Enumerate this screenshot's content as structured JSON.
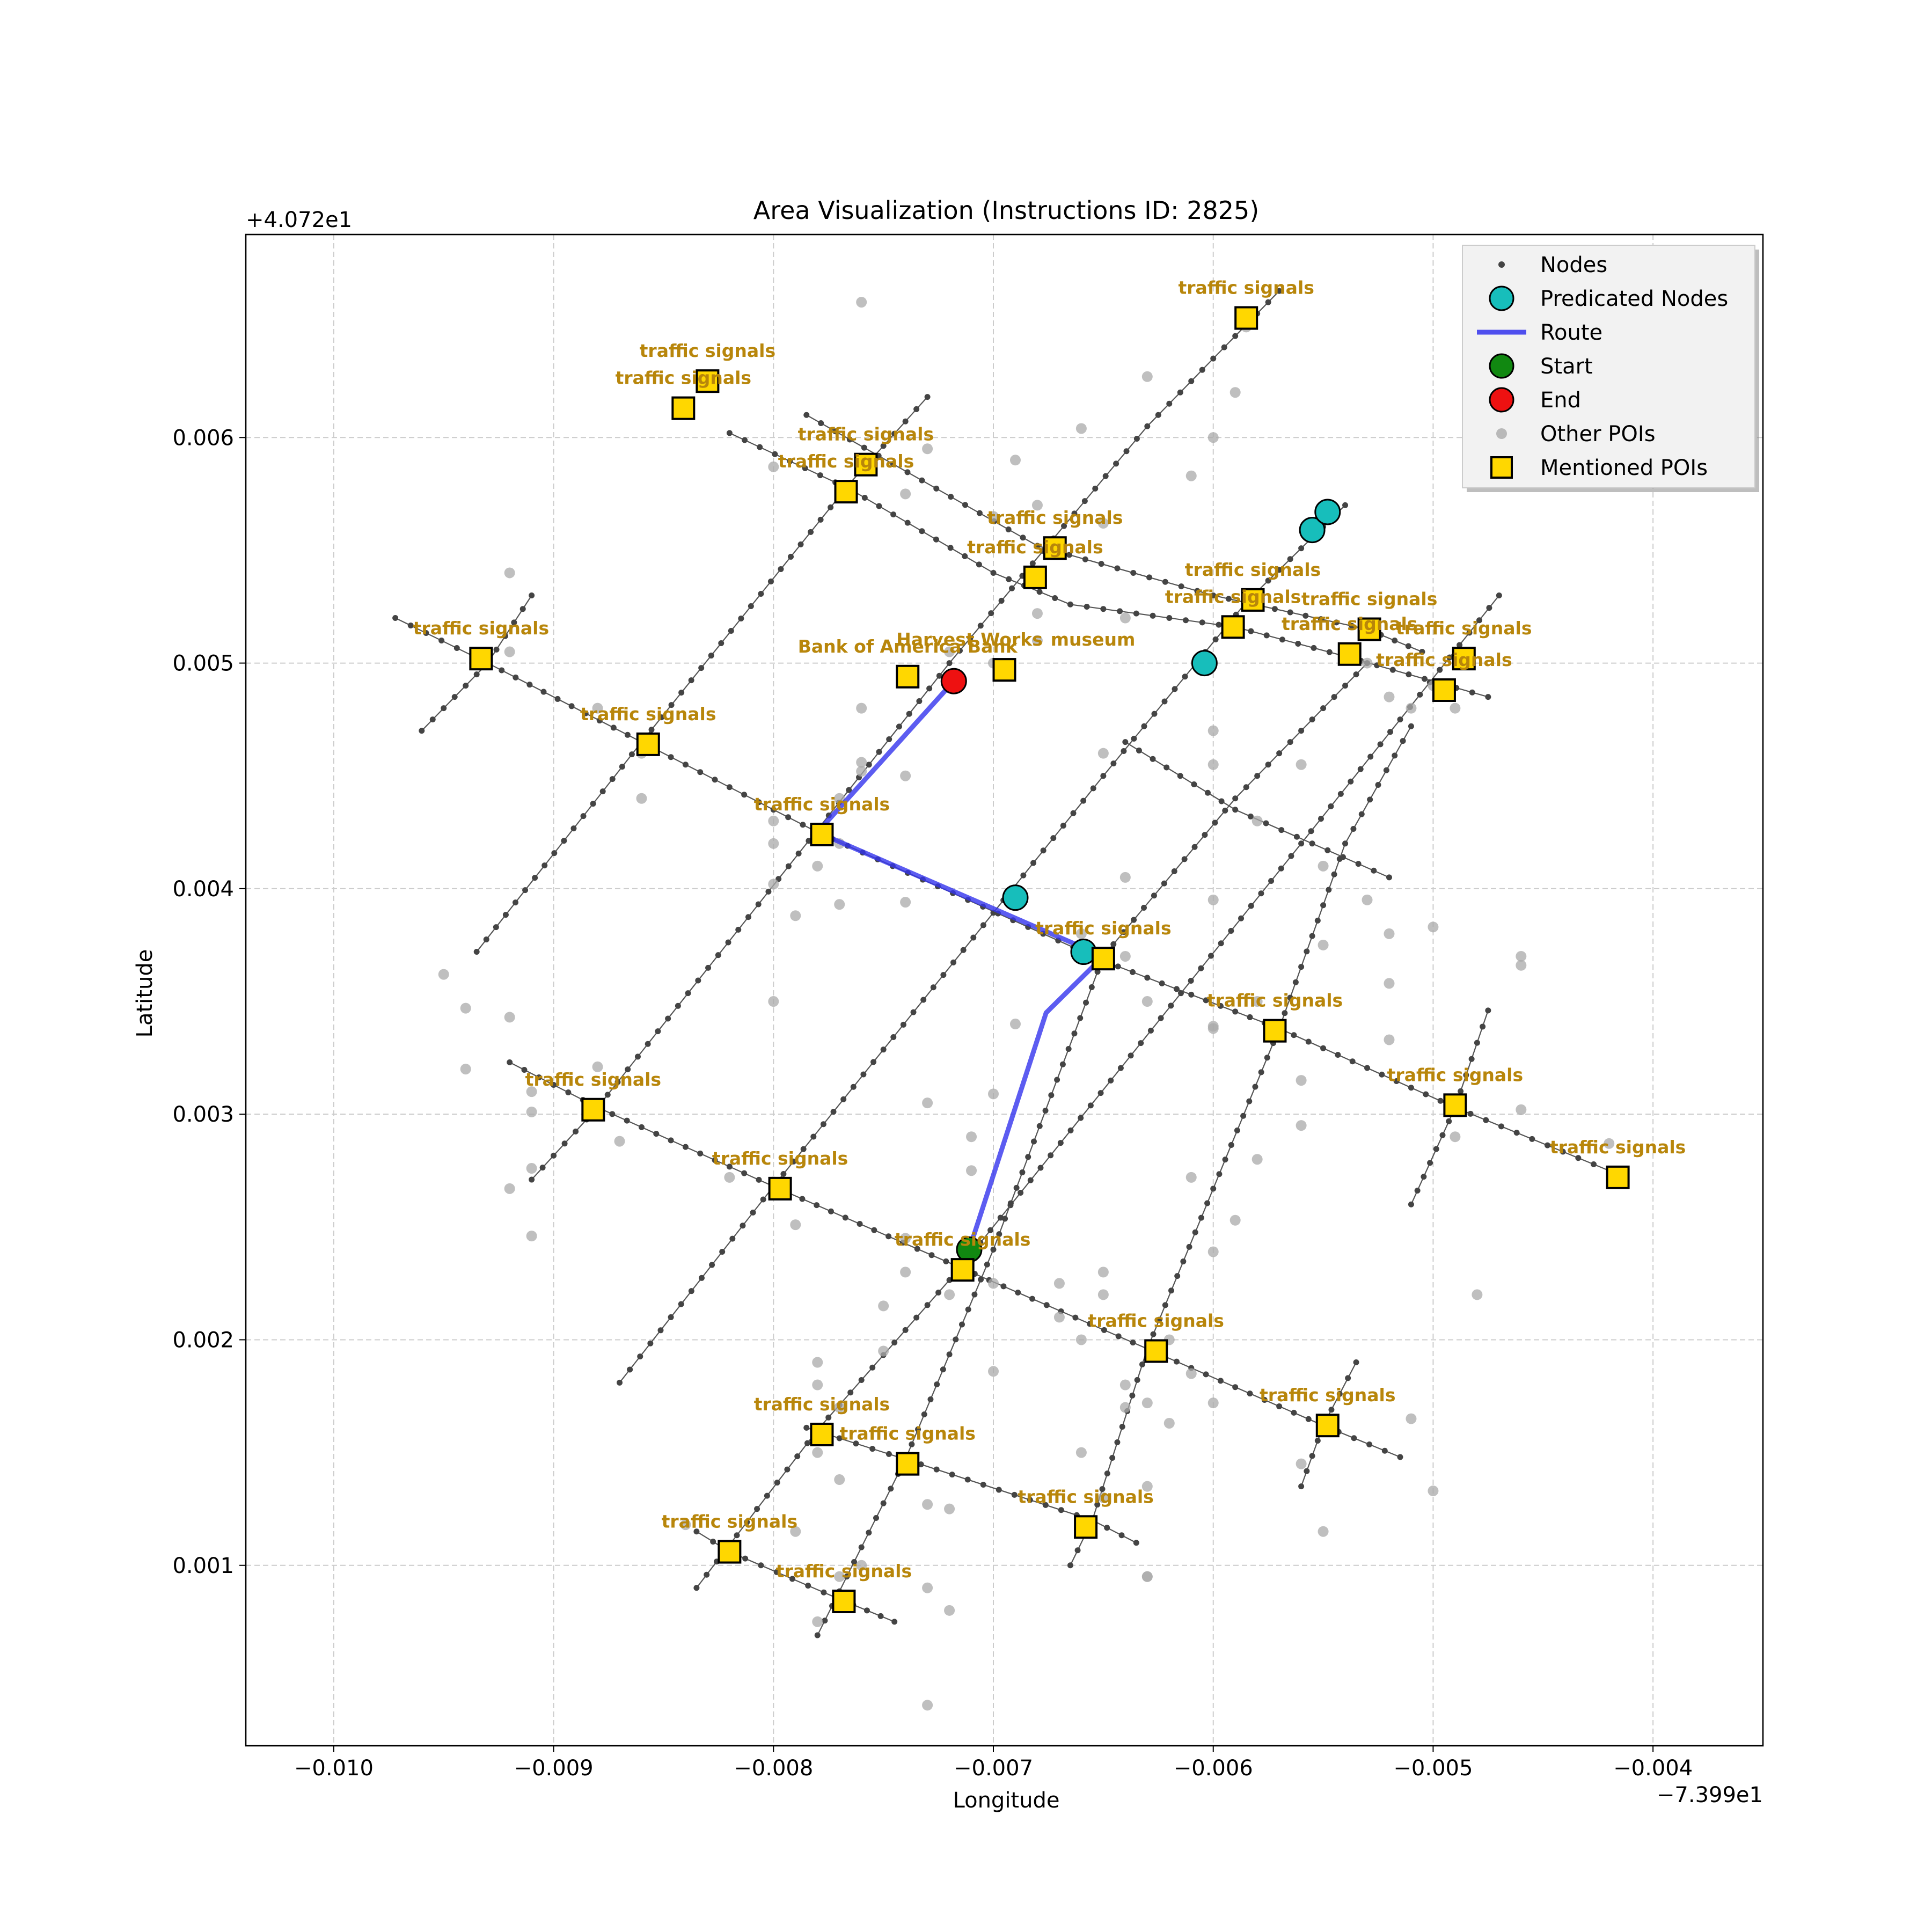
{
  "chart_data": {
    "type": "scatter",
    "title": "Area Visualization (Instructions ID: 2825)",
    "xlabel": "Longitude",
    "ylabel": "Latitude",
    "x_offset_label": "−7.399e1",
    "y_offset_label": "+4.072e1",
    "xlim": [
      -0.0104,
      -0.0035
    ],
    "ylim": [
      0.0002,
      0.0069
    ],
    "xticks": [
      -0.01,
      -0.009,
      -0.008,
      -0.007,
      -0.006,
      -0.005,
      -0.004
    ],
    "xtick_labels": [
      "−0.010",
      "−0.009",
      "−0.008",
      "−0.007",
      "−0.006",
      "−0.005",
      "−0.004"
    ],
    "yticks": [
      0.001,
      0.002,
      0.003,
      0.004,
      0.005,
      0.006
    ],
    "ytick_labels": [
      "0.001",
      "0.002",
      "0.003",
      "0.004",
      "0.005",
      "0.006"
    ],
    "grid": true,
    "legend_position": "top-right",
    "legend": [
      "Nodes",
      "Predicated Nodes",
      "Route",
      "Start",
      "End",
      "Other POIs",
      "Mentioned POIs"
    ],
    "colors": {
      "node": "#444444",
      "predicated": "#17bebb",
      "route": "#3333ee",
      "start": "#118811",
      "end": "#ee1111",
      "other_poi": "#aaaaaa",
      "mentioned_poi": "#ffd700",
      "label": "#b8860b",
      "grid": "#cccccc"
    },
    "streets": [
      [
        [
          -0.00972,
          0.0052
        ],
        [
          -0.0093,
          0.005
        ],
        [
          -0.0086,
          0.00465
        ],
        [
          -0.0078,
          0.00425
        ],
        [
          -0.0065,
          0.00368
        ],
        [
          -0.0057,
          0.00338
        ],
        [
          -0.0049,
          0.00303
        ],
        [
          -0.0042,
          0.00275
        ]
      ],
      [
        [
          -0.0092,
          0.00323
        ],
        [
          -0.0088,
          0.00303
        ],
        [
          -0.008,
          0.00268
        ],
        [
          -0.00715,
          0.00232
        ],
        [
          -0.0063,
          0.00196
        ],
        [
          -0.0055,
          0.00162
        ],
        [
          -0.00515,
          0.00148
        ]
      ],
      [
        [
          -0.00785,
          0.0061
        ],
        [
          -0.0068,
          0.00552
        ],
        [
          -0.006,
          0.0053
        ],
        [
          -0.0053,
          0.00515
        ],
        [
          -0.00505,
          0.00505
        ]
      ],
      [
        [
          -0.0082,
          0.00602
        ],
        [
          -0.00765,
          0.00577
        ],
        [
          -0.007,
          0.0054
        ],
        [
          -0.00665,
          0.00526
        ],
        [
          -0.0059,
          0.00516
        ],
        [
          -0.0054,
          0.00503
        ],
        [
          -0.00475,
          0.00485
        ]
      ],
      [
        [
          -0.00785,
          0.00161
        ],
        [
          -0.0074,
          0.00147
        ],
        [
          -0.00655,
          0.0012
        ],
        [
          -0.00635,
          0.0011
        ]
      ],
      [
        [
          -0.00835,
          0.00115
        ],
        [
          -0.0082,
          0.00106
        ],
        [
          -0.0077,
          0.00085
        ],
        [
          -0.00745,
          0.00075
        ]
      ],
      [
        [
          -0.0064,
          0.00465
        ],
        [
          -0.0059,
          0.00435
        ],
        [
          -0.0052,
          0.00405
        ]
      ],
      [
        [
          -0.0096,
          0.0047
        ],
        [
          -0.0093,
          0.005
        ],
        [
          -0.0091,
          0.0053
        ]
      ],
      [
        [
          -0.00935,
          0.00372
        ],
        [
          -0.0086,
          0.00465
        ],
        [
          -0.00765,
          0.0058
        ],
        [
          -0.0073,
          0.00618
        ]
      ],
      [
        [
          -0.0091,
          0.00271
        ],
        [
          -0.0088,
          0.00303
        ],
        [
          -0.0072,
          0.005
        ],
        [
          -0.0063,
          0.00605
        ],
        [
          -0.0057,
          0.00665
        ]
      ],
      [
        [
          -0.00835,
          0.0009
        ],
        [
          -0.0078,
          0.0016
        ],
        [
          -0.00715,
          0.00232
        ],
        [
          -0.0056,
          0.0042
        ],
        [
          -0.0047,
          0.0053
        ]
      ],
      [
        [
          -0.0087,
          0.00181
        ],
        [
          -0.008,
          0.00268
        ],
        [
          -0.0065,
          0.0045
        ],
        [
          -0.00585,
          0.00527
        ],
        [
          -0.0054,
          0.0057
        ]
      ],
      [
        [
          -0.0078,
          0.00069
        ],
        [
          -0.0074,
          0.00147
        ],
        [
          -0.007,
          0.0024
        ],
        [
          -0.0065,
          0.0037
        ],
        [
          -0.0059,
          0.0044
        ],
        [
          -0.0053,
          0.005
        ]
      ],
      [
        [
          -0.00665,
          0.001
        ],
        [
          -0.00655,
          0.0012
        ],
        [
          -0.0063,
          0.00196
        ],
        [
          -0.0057,
          0.00338
        ],
        [
          -0.0054,
          0.0042
        ],
        [
          -0.0051,
          0.00472
        ]
      ],
      [
        [
          -0.0051,
          0.0026
        ],
        [
          -0.0049,
          0.00303
        ],
        [
          -0.00475,
          0.00346
        ]
      ],
      [
        [
          -0.0056,
          0.00135
        ],
        [
          -0.0055,
          0.00162
        ],
        [
          -0.00535,
          0.0019
        ]
      ]
    ],
    "route": [
      [
        -0.00711,
        0.0024
      ],
      [
        -0.00676,
        0.00345
      ],
      [
        -0.0065,
        0.0037
      ],
      [
        -0.0078,
        0.00425
      ],
      [
        -0.00718,
        0.00492
      ]
    ],
    "start": [
      -0.00711,
      0.0024
    ],
    "end": [
      -0.00718,
      0.00492
    ],
    "predicated_nodes": [
      [
        -0.0069,
        0.00396
      ],
      [
        -0.00659,
        0.00372
      ],
      [
        -0.00604,
        0.005
      ],
      [
        -0.00555,
        0.00559
      ],
      [
        -0.00548,
        0.00567
      ]
    ],
    "other_pois": [
      [
        -0.0076,
        0.0066
      ],
      [
        -0.00585,
        0.00649
      ],
      [
        -0.0059,
        0.0062
      ],
      [
        -0.0063,
        0.00627
      ],
      [
        -0.0066,
        0.00604
      ],
      [
        -0.006,
        0.006
      ],
      [
        -0.0069,
        0.0059
      ],
      [
        -0.008,
        0.00587
      ],
      [
        -0.0073,
        0.00595
      ],
      [
        -0.0074,
        0.00575
      ],
      [
        -0.0061,
        0.00583
      ],
      [
        -0.0065,
        0.00562
      ],
      [
        -0.0068,
        0.0057
      ],
      [
        -0.007,
        0.00565
      ],
      [
        -0.0092,
        0.0054
      ],
      [
        -0.0068,
        0.00522
      ],
      [
        -0.0064,
        0.0052
      ],
      [
        -0.0068,
        0.0051
      ],
      [
        -0.007,
        0.005
      ],
      [
        -0.0072,
        0.00505
      ],
      [
        -0.0076,
        0.0048
      ],
      [
        -0.0074,
        0.0045
      ],
      [
        -0.0076,
        0.00456
      ],
      [
        -0.0077,
        0.0044
      ],
      [
        -0.0076,
        0.00452
      ],
      [
        -0.0086,
        0.0046
      ],
      [
        -0.0088,
        0.0048
      ],
      [
        -0.0086,
        0.0044
      ],
      [
        -0.008,
        0.0042
      ],
      [
        -0.0078,
        0.0041
      ],
      [
        -0.008,
        0.0043
      ],
      [
        -0.0079,
        0.00388
      ],
      [
        -0.0077,
        0.00393
      ],
      [
        -0.008,
        0.00402
      ],
      [
        -0.0077,
        0.0042
      ],
      [
        -0.0074,
        0.00394
      ],
      [
        -0.0065,
        0.0046
      ],
      [
        -0.006,
        0.0047
      ],
      [
        -0.006,
        0.00455
      ],
      [
        -0.0056,
        0.00455
      ],
      [
        -0.0058,
        0.0043
      ],
      [
        -0.0064,
        0.00405
      ],
      [
        -0.006,
        0.00395
      ],
      [
        -0.0066,
        0.0038
      ],
      [
        -0.0064,
        0.0037
      ],
      [
        -0.0063,
        0.0035
      ],
      [
        -0.006,
        0.00338
      ],
      [
        -0.0058,
        0.0035
      ],
      [
        -0.0055,
        0.0041
      ],
      [
        -0.0055,
        0.00375
      ],
      [
        -0.0053,
        0.00395
      ],
      [
        -0.0052,
        0.0038
      ],
      [
        -0.0049,
        0.0048
      ],
      [
        -0.005,
        0.0049
      ],
      [
        -0.0052,
        0.00485
      ],
      [
        -0.0053,
        0.005
      ],
      [
        -0.0051,
        0.0048
      ],
      [
        -0.0092,
        0.00505
      ],
      [
        -0.0095,
        0.00362
      ],
      [
        -0.0094,
        0.00347
      ],
      [
        -0.0092,
        0.00343
      ],
      [
        -0.0094,
        0.0032
      ],
      [
        -0.0091,
        0.0031
      ],
      [
        -0.0091,
        0.00301
      ],
      [
        -0.0088,
        0.00321
      ],
      [
        -0.0087,
        0.00288
      ],
      [
        -0.0092,
        0.00267
      ],
      [
        -0.0091,
        0.00276
      ],
      [
        -0.0091,
        0.00246
      ],
      [
        -0.008,
        0.0035
      ],
      [
        -0.0082,
        0.00272
      ],
      [
        -0.0079,
        0.00251
      ],
      [
        -0.008,
        0.0027
      ],
      [
        -0.0074,
        0.00245
      ],
      [
        -0.0074,
        0.0023
      ],
      [
        -0.0075,
        0.00215
      ],
      [
        -0.0072,
        0.0022
      ],
      [
        -0.007,
        0.00309
      ],
      [
        -0.0071,
        0.0029
      ],
      [
        -0.0071,
        0.00275
      ],
      [
        -0.0073,
        0.00305
      ],
      [
        -0.0069,
        0.0034
      ],
      [
        -0.007,
        0.00225
      ],
      [
        -0.0067,
        0.0021
      ],
      [
        -0.0066,
        0.002
      ],
      [
        -0.0065,
        0.0022
      ],
      [
        -0.0067,
        0.00225
      ],
      [
        -0.0061,
        0.00272
      ],
      [
        -0.0059,
        0.00253
      ],
      [
        -0.0058,
        0.0028
      ],
      [
        -0.006,
        0.00239
      ],
      [
        -0.0056,
        0.00295
      ],
      [
        -0.0056,
        0.00315
      ],
      [
        -0.006,
        0.00339
      ],
      [
        -0.0065,
        0.0023
      ],
      [
        -0.0062,
        0.002
      ],
      [
        -0.0064,
        0.0018
      ],
      [
        -0.0062,
        0.00163
      ],
      [
        -0.0063,
        0.00172
      ],
      [
        -0.006,
        0.00172
      ],
      [
        -0.0066,
        0.0015
      ],
      [
        -0.0065,
        0.0013
      ],
      [
        -0.0063,
        0.00135
      ],
      [
        -0.0064,
        0.0017
      ],
      [
        -0.0061,
        0.00185
      ],
      [
        -0.0056,
        0.00145
      ],
      [
        -0.0055,
        0.00115
      ],
      [
        -0.0051,
        0.00165
      ],
      [
        -0.005,
        0.00133
      ],
      [
        -0.0048,
        0.0022
      ],
      [
        -0.0049,
        0.0029
      ],
      [
        -0.0046,
        0.00302
      ],
      [
        -0.0046,
        0.0037
      ],
      [
        -0.0046,
        0.00366
      ],
      [
        -0.005,
        0.00383
      ],
      [
        -0.0052,
        0.00358
      ],
      [
        -0.0052,
        0.00333
      ],
      [
        -0.0042,
        0.00287
      ],
      [
        -0.0075,
        0.00195
      ],
      [
        -0.0078,
        0.0018
      ],
      [
        -0.0077,
        0.0017
      ],
      [
        -0.0078,
        0.0015
      ],
      [
        -0.0077,
        0.00138
      ],
      [
        -0.0073,
        0.00127
      ],
      [
        -0.0072,
        0.00125
      ],
      [
        -0.0079,
        0.00115
      ],
      [
        -0.0076,
        0.001
      ],
      [
        -0.0077,
        0.00095
      ],
      [
        -0.0073,
        0.0009
      ],
      [
        -0.0072,
        0.0008
      ],
      [
        -0.0078,
        0.00075
      ],
      [
        -0.0063,
        0.00095
      ],
      [
        -0.0063,
        0.00095
      ],
      [
        -0.0073,
        0.00038
      ],
      [
        -0.007,
        0.00186
      ],
      [
        -0.0084,
        0.00118
      ],
      [
        -0.0078,
        0.0019
      ]
    ],
    "mentioned_pois": [
      {
        "x": -0.00585,
        "y": 0.00653,
        "label": "traffic signals"
      },
      {
        "x": -0.0083,
        "y": 0.00625,
        "label": "traffic signals"
      },
      {
        "x": -0.00841,
        "y": 0.00613,
        "label": "traffic signals"
      },
      {
        "x": -0.00758,
        "y": 0.00588,
        "label": "traffic signals"
      },
      {
        "x": -0.00767,
        "y": 0.00576,
        "label": "traffic signals"
      },
      {
        "x": -0.00672,
        "y": 0.00551,
        "label": "traffic signals"
      },
      {
        "x": -0.00681,
        "y": 0.00538,
        "label": "traffic signals"
      },
      {
        "x": -0.00582,
        "y": 0.00528,
        "label": "traffic signals"
      },
      {
        "x": -0.00591,
        "y": 0.00516,
        "label": "traffic signals"
      },
      {
        "x": -0.00529,
        "y": 0.00515,
        "label": "traffic signals"
      },
      {
        "x": -0.00538,
        "y": 0.00504,
        "label": "traffic signals"
      },
      {
        "x": -0.00486,
        "y": 0.00502,
        "label": "traffic signals"
      },
      {
        "x": -0.00495,
        "y": 0.00488,
        "label": "traffic signals"
      },
      {
        "x": -0.00933,
        "y": 0.00502,
        "label": "traffic signals"
      },
      {
        "x": -0.00739,
        "y": 0.00494,
        "label": "Bank of America Bank"
      },
      {
        "x": -0.00695,
        "y": 0.00497,
        "label": "Harvest Works"
      },
      {
        "x": -0.00695,
        "y": 0.00497,
        "label": "museum"
      },
      {
        "x": -0.00857,
        "y": 0.00464,
        "label": "traffic signals"
      },
      {
        "x": -0.00778,
        "y": 0.00424,
        "label": "traffic signals"
      },
      {
        "x": -0.0065,
        "y": 0.00369,
        "label": "traffic signals"
      },
      {
        "x": -0.00572,
        "y": 0.00337,
        "label": "traffic signals"
      },
      {
        "x": -0.0049,
        "y": 0.00304,
        "label": "traffic signals"
      },
      {
        "x": -0.00882,
        "y": 0.00302,
        "label": "traffic signals"
      },
      {
        "x": -0.00416,
        "y": 0.00272,
        "label": "traffic signals"
      },
      {
        "x": -0.00797,
        "y": 0.00267,
        "label": "traffic signals"
      },
      {
        "x": -0.00714,
        "y": 0.00231,
        "label": "traffic signals"
      },
      {
        "x": -0.00626,
        "y": 0.00195,
        "label": "traffic signals"
      },
      {
        "x": -0.00548,
        "y": 0.00162,
        "label": "traffic signals"
      },
      {
        "x": -0.00778,
        "y": 0.00158,
        "label": "traffic signals"
      },
      {
        "x": -0.00739,
        "y": 0.00145,
        "label": "traffic signals"
      },
      {
        "x": -0.00658,
        "y": 0.00117,
        "label": "traffic signals"
      },
      {
        "x": -0.0082,
        "y": 0.00106,
        "label": "traffic signals"
      },
      {
        "x": -0.00768,
        "y": 0.00084,
        "label": "traffic signals"
      }
    ]
  }
}
